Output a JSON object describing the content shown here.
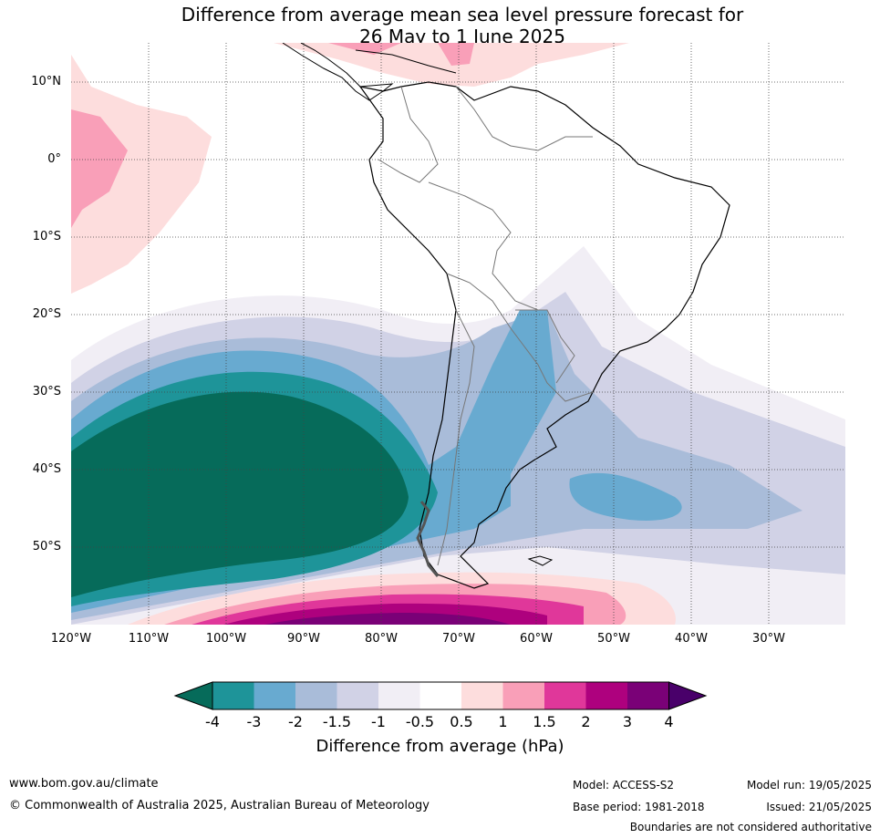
{
  "title_line1": "Difference from average mean sea level pressure forecast for",
  "title_line2": "26 May to 1 June 2025",
  "lat_labels": [
    "10°N",
    "0°",
    "10°S",
    "20°S",
    "30°S",
    "40°S",
    "50°S"
  ],
  "lon_labels": [
    "120°W",
    "110°W",
    "100°W",
    "90°W",
    "80°W",
    "70°W",
    "60°W",
    "50°W",
    "40°W",
    "30°W"
  ],
  "colorbar": {
    "ticks": [
      "-4",
      "-3",
      "-2",
      "-1.5",
      "-1",
      "-0.5",
      "0.5",
      "1",
      "1.5",
      "2",
      "3",
      "4"
    ],
    "colors": [
      "#066b5a",
      "#1e9499",
      "#68aad0",
      "#a9bcd9",
      "#d1d2e6",
      "#f1eef5",
      "#ffffff",
      "#fddddd",
      "#f99fb8",
      "#e0379a",
      "#ae017e",
      "#7a0177",
      "#49006a"
    ],
    "label": "Difference from average (hPa)"
  },
  "footer": {
    "website": "www.bom.gov.au/climate",
    "copyright": "© Commonwealth of Australia 2025, Australian Bureau of Meteorology",
    "model": "Model: ACCESS-S2",
    "base_period": "Base period: 1981-2018",
    "model_run": "Model run: 19/05/2025",
    "issued": "Issued: 21/05/2025",
    "disclaimer": "Boundaries are not considered authoritative"
  }
}
